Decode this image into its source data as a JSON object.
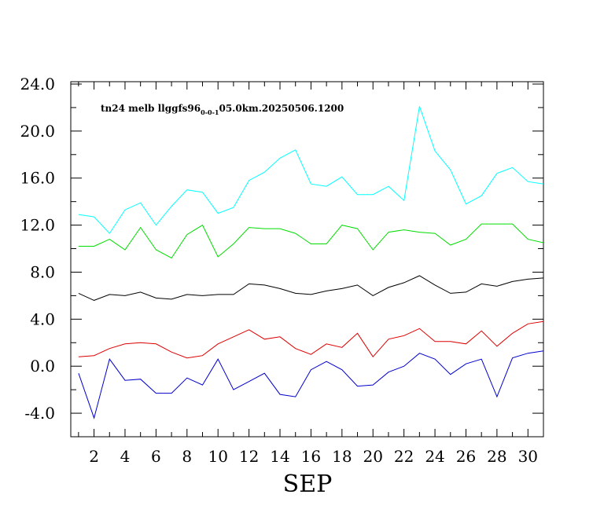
{
  "chart_data": {
    "type": "line",
    "title": "tn24  melb  llggfs96",
    "title_sub": "0-0-1",
    "title_suffix": "05.0km.20250506.1200",
    "xlabel": "SEP",
    "ylabel": "",
    "x": [
      1,
      2,
      3,
      4,
      5,
      6,
      7,
      8,
      9,
      10,
      11,
      12,
      13,
      14,
      15,
      16,
      17,
      18,
      19,
      20,
      21,
      22,
      23,
      24,
      25,
      26,
      27,
      28,
      29,
      30,
      31
    ],
    "xlim": [
      0.5,
      31
    ],
    "ylim": [
      -6,
      24.2
    ],
    "x_ticks": [
      2,
      4,
      6,
      8,
      10,
      12,
      14,
      16,
      18,
      20,
      22,
      24,
      26,
      28,
      30
    ],
    "y_ticks": [
      -4,
      0,
      4,
      8,
      12,
      16,
      20,
      24
    ],
    "y_tick_labels": [
      "-4.0",
      "0.0",
      "4.0",
      "8.0",
      "12.0",
      "16.0",
      "20.0",
      "24.0"
    ],
    "grid": false,
    "series": [
      {
        "color": "#00ffff",
        "values": [
          12.9,
          12.7,
          11.3,
          13.3,
          13.9,
          12.0,
          13.6,
          15.0,
          14.8,
          13.0,
          13.5,
          15.8,
          16.5,
          17.7,
          18.4,
          15.5,
          15.3,
          16.1,
          14.6,
          14.6,
          15.3,
          14.1,
          22.1,
          18.3,
          16.7,
          13.8,
          14.5,
          16.4,
          16.9,
          15.7,
          15.5
        ]
      },
      {
        "color": "#00dd00",
        "values": [
          10.2,
          10.2,
          10.8,
          9.9,
          11.8,
          9.9,
          9.2,
          11.2,
          12.0,
          9.3,
          10.4,
          11.8,
          11.7,
          11.7,
          11.3,
          10.4,
          10.4,
          12.0,
          11.7,
          9.9,
          11.4,
          11.6,
          11.4,
          11.3,
          10.3,
          10.8,
          12.1,
          12.1,
          12.1,
          10.8,
          10.5
        ]
      },
      {
        "color": "#000000",
        "values": [
          6.2,
          5.6,
          6.1,
          6.0,
          6.3,
          5.8,
          5.7,
          6.1,
          6.0,
          6.1,
          6.1,
          7.0,
          6.9,
          6.6,
          6.2,
          6.1,
          6.4,
          6.6,
          6.9,
          6.0,
          6.7,
          7.1,
          7.7,
          6.9,
          6.2,
          6.3,
          7.0,
          6.8,
          7.2,
          7.4,
          7.5
        ]
      },
      {
        "color": "#dd0000",
        "values": [
          0.8,
          0.9,
          1.5,
          1.9,
          2.0,
          1.9,
          1.2,
          0.7,
          0.9,
          1.9,
          2.5,
          3.1,
          2.3,
          2.5,
          1.5,
          1.0,
          1.9,
          1.6,
          2.8,
          0.8,
          2.3,
          2.6,
          3.2,
          2.1,
          2.1,
          1.9,
          3.0,
          1.7,
          2.8,
          3.6,
          3.8
        ]
      },
      {
        "color": "#0000cc",
        "values": [
          -0.6,
          -4.4,
          0.6,
          -1.2,
          -1.1,
          -2.3,
          -2.3,
          -1.0,
          -1.6,
          0.6,
          -2.0,
          -1.3,
          -0.6,
          -2.4,
          -2.6,
          -0.3,
          0.4,
          -0.3,
          -1.7,
          -1.6,
          -0.5,
          0.0,
          1.1,
          0.6,
          -0.7,
          0.2,
          0.6,
          -2.6,
          0.7,
          1.1,
          1.3
        ]
      }
    ]
  }
}
